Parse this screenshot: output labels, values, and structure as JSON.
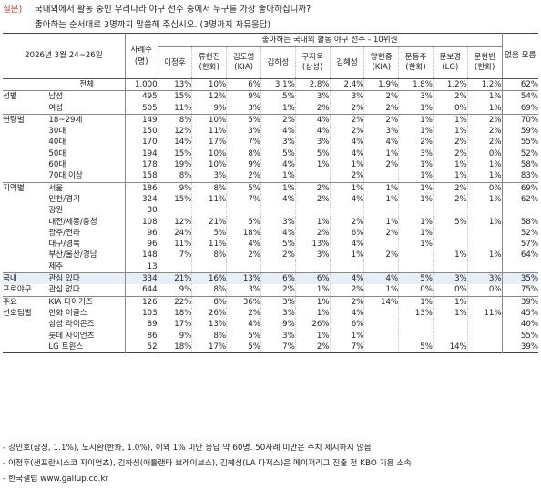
{
  "question": {
    "tag": "질문)",
    "line1": "국내외에서 활동 중인 우리나라 야구 선수 중에서 누구를 가장 좋아하십니까?",
    "line2": "좋아하는 순서대로 3명까지 말씀해 주십시오. (3명까지 자유응답)"
  },
  "header": {
    "date": "2026년 3월 24~26일",
    "cases_label": "사례수 (명)",
    "group_title": "좋아하는 국내외 활동 야구 선수 - 10위권",
    "no_answer": "없음 모름",
    "players": [
      "이정후",
      "류현진 (한화)",
      "김도영 (KIA)",
      "김하성",
      "구자욱 (삼성)",
      "김혜성",
      "양현종 (KIA)",
      "문동주 (한화)",
      "문보경 (LG)",
      "문현빈 (한화)"
    ]
  },
  "rows": [
    {
      "group": "",
      "label": "전체",
      "n": "1,000",
      "vals": [
        "13%",
        "10%",
        "6%",
        "3.1%",
        "2.8%",
        "2.4%",
        "1.9%",
        "1.8%",
        "1.2%",
        "1.2%"
      ],
      "na": "62%",
      "sep": true,
      "total": true
    },
    {
      "group": "성별",
      "label": "남성",
      "n": "495",
      "vals": [
        "15%",
        "12%",
        "9%",
        "5%",
        "3%",
        "3%",
        "2%",
        "3%",
        "2%",
        "1%"
      ],
      "na": "54%",
      "sep": true
    },
    {
      "group": "",
      "label": "여성",
      "n": "505",
      "vals": [
        "11%",
        "9%",
        "3%",
        "1%",
        "2%",
        "2%",
        "2%",
        "1%",
        "0%",
        "1%"
      ],
      "na": "69%"
    },
    {
      "group": "연령별",
      "label": "18~29세",
      "n": "149",
      "vals": [
        "8%",
        "10%",
        "5%",
        "2%",
        "4%",
        "2%",
        "2%",
        "1%",
        "1%",
        "2%"
      ],
      "na": "70%",
      "sep": true
    },
    {
      "group": "",
      "label": "30대",
      "n": "150",
      "vals": [
        "12%",
        "11%",
        "3%",
        "4%",
        "4%",
        "2%",
        "3%",
        "1%",
        "1%",
        "2%"
      ],
      "na": "59%"
    },
    {
      "group": "",
      "label": "40대",
      "n": "170",
      "vals": [
        "14%",
        "17%",
        "7%",
        "3%",
        "3%",
        "4%",
        "4%",
        "2%",
        "2%",
        "2%"
      ],
      "na": "55%"
    },
    {
      "group": "",
      "label": "50대",
      "n": "194",
      "vals": [
        "15%",
        "10%",
        "8%",
        "5%",
        "5%",
        "4%",
        "1%",
        "3%",
        "2%",
        "0%"
      ],
      "na": "52%"
    },
    {
      "group": "",
      "label": "60대",
      "n": "178",
      "vals": [
        "19%",
        "10%",
        "9%",
        "4%",
        "1%",
        "1%",
        "2%",
        "1%",
        "1%",
        "1%"
      ],
      "na": "58%"
    },
    {
      "group": "",
      "label": "70대 이상",
      "n": "158",
      "vals": [
        "8%",
        "3%",
        "2%",
        "1%",
        "",
        "2%",
        "",
        "1%",
        "1%",
        "1%"
      ],
      "na": "83%"
    },
    {
      "group": "지역별",
      "label": "서울",
      "n": "186",
      "vals": [
        "9%",
        "8%",
        "5%",
        "1%",
        "2%",
        "1%",
        "1%",
        "1%",
        "2%",
        "0%"
      ],
      "na": "69%",
      "sep": true
    },
    {
      "group": "",
      "label": "인천/경기",
      "n": "324",
      "vals": [
        "15%",
        "11%",
        "7%",
        "4%",
        "2%",
        "4%",
        "1%",
        "1%",
        "2%",
        "1%"
      ],
      "na": "62%"
    },
    {
      "group": "",
      "label": "강원",
      "n": "30",
      "vals": [
        "",
        "",
        "",
        "",
        "",
        "",
        "",
        "",
        "",
        ""
      ],
      "na": ""
    },
    {
      "group": "",
      "label": "대전/세종/충청",
      "n": "108",
      "vals": [
        "12%",
        "21%",
        "5%",
        "3%",
        "1%",
        "2%",
        "1%",
        "1%",
        "5%",
        "1%"
      ],
      "na": "58%"
    },
    {
      "group": "",
      "label": "광주/전라",
      "n": "96",
      "vals": [
        "24%",
        "5%",
        "18%",
        "4%",
        "2%",
        "6%",
        "2%",
        "1%",
        "",
        ""
      ],
      "na": "52%"
    },
    {
      "group": "",
      "label": "대구/경북",
      "n": "96",
      "vals": [
        "11%",
        "11%",
        "4%",
        "5%",
        "13%",
        "4%",
        "",
        "1%",
        "",
        ""
      ],
      "na": "57%"
    },
    {
      "group": "",
      "label": "부산/울산/경남",
      "n": "148",
      "vals": [
        "7%",
        "8%",
        "2%",
        "2%",
        "3%",
        "1%",
        "2%",
        "",
        "1%",
        "1%"
      ],
      "na": "64%"
    },
    {
      "group": "",
      "label": "제주",
      "n": "13",
      "vals": [
        "",
        "",
        "",
        "",
        "",
        "",
        "",
        "",
        "",
        ""
      ],
      "na": ""
    },
    {
      "group": "국내",
      "label": "관심 있다",
      "n": "334",
      "vals": [
        "21%",
        "16%",
        "13%",
        "6%",
        "6%",
        "4%",
        "4%",
        "5%",
        "3%",
        "3%"
      ],
      "na": "35%",
      "sep": true,
      "interest": true
    },
    {
      "group": "프로야구",
      "label": "관심 없다",
      "n": "644",
      "vals": [
        "9%",
        "8%",
        "3%",
        "2%",
        "1%",
        "2%",
        "1%",
        "0%",
        "0%",
        "0%"
      ],
      "na": "75%"
    },
    {
      "group": "주요",
      "label": "KIA 타이거즈",
      "n": "126",
      "vals": [
        "22%",
        "8%",
        "36%",
        "3%",
        "1%",
        "2%",
        "14%",
        "1%",
        "1%",
        ""
      ],
      "na": "39%",
      "sep": true
    },
    {
      "group": "선호팀별",
      "label": "한화 이글스",
      "n": "103",
      "vals": [
        "18%",
        "26%",
        "2%",
        "3%",
        "1%",
        "4%",
        "",
        "13%",
        "1%",
        "11%"
      ],
      "na": "45%"
    },
    {
      "group": "",
      "label": "삼성 라이온즈",
      "n": "89",
      "vals": [
        "17%",
        "13%",
        "4%",
        "9%",
        "26%",
        "6%",
        "",
        "",
        "",
        ""
      ],
      "na": "40%"
    },
    {
      "group": "",
      "label": "롯데 자이언츠",
      "n": "86",
      "vals": [
        "9%",
        "8%",
        "5%",
        "3%",
        "1%",
        "1%",
        "",
        "",
        "",
        ""
      ],
      "na": "55%"
    },
    {
      "group": "",
      "label": "LG 트윈스",
      "n": "52",
      "vals": [
        "18%",
        "17%",
        "5%",
        "7%",
        "2%",
        "7%",
        "",
        "5%",
        "14%",
        ""
      ],
      "na": "39%"
    }
  ],
  "notes": [
    "- 강민호(삼성, 1.1%), 노시환(한화, 1.0%), 이외 1% 미만 응답 약 60명. 50사례 미만은 수치 제시하지 않음",
    "- 이정후(샌프란시스코 자이언츠), 김하성(애틀랜타 브레이브스), 김혜성(LA 다저스)은 메이저리그 진출 전 KBO 기용 소속",
    "- 한국갤럽 www.gallup.co.kr"
  ]
}
